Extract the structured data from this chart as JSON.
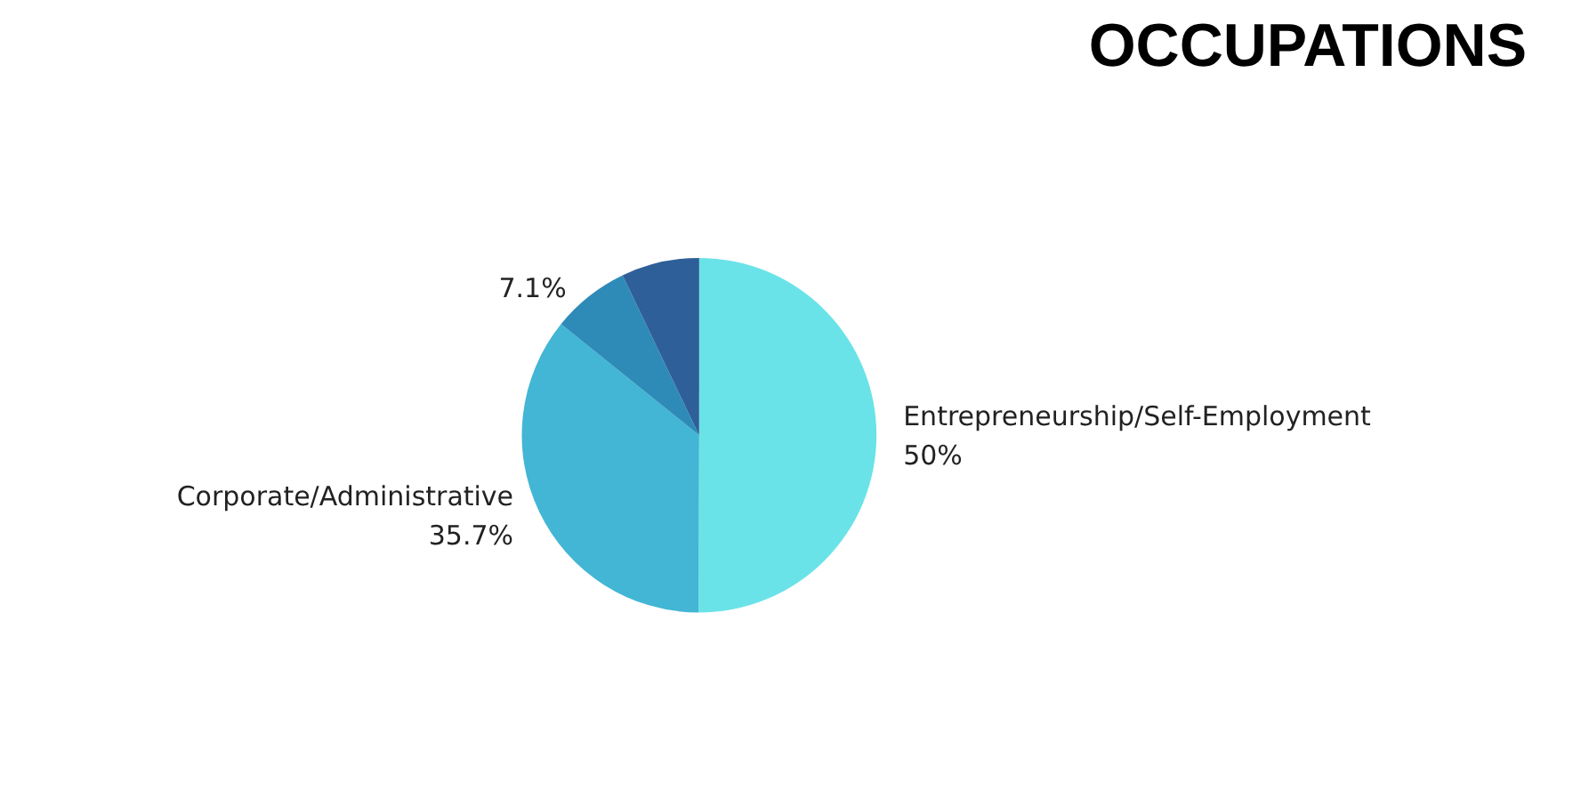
{
  "chart_data": {
    "type": "pie",
    "title": "OCCUPATIONS",
    "categories": [
      "Entrepreneurship/Self-Employment",
      "Corporate/Administrative",
      null,
      null
    ],
    "values": [
      50,
      35.7,
      7.1,
      7.1
    ],
    "colors": [
      "#6ae3e8",
      "#42b6d4",
      "#2e8bb8",
      "#2e5f98"
    ],
    "value_labels": [
      "50%",
      "35.7%",
      "7.1%",
      null
    ],
    "legend": false
  }
}
